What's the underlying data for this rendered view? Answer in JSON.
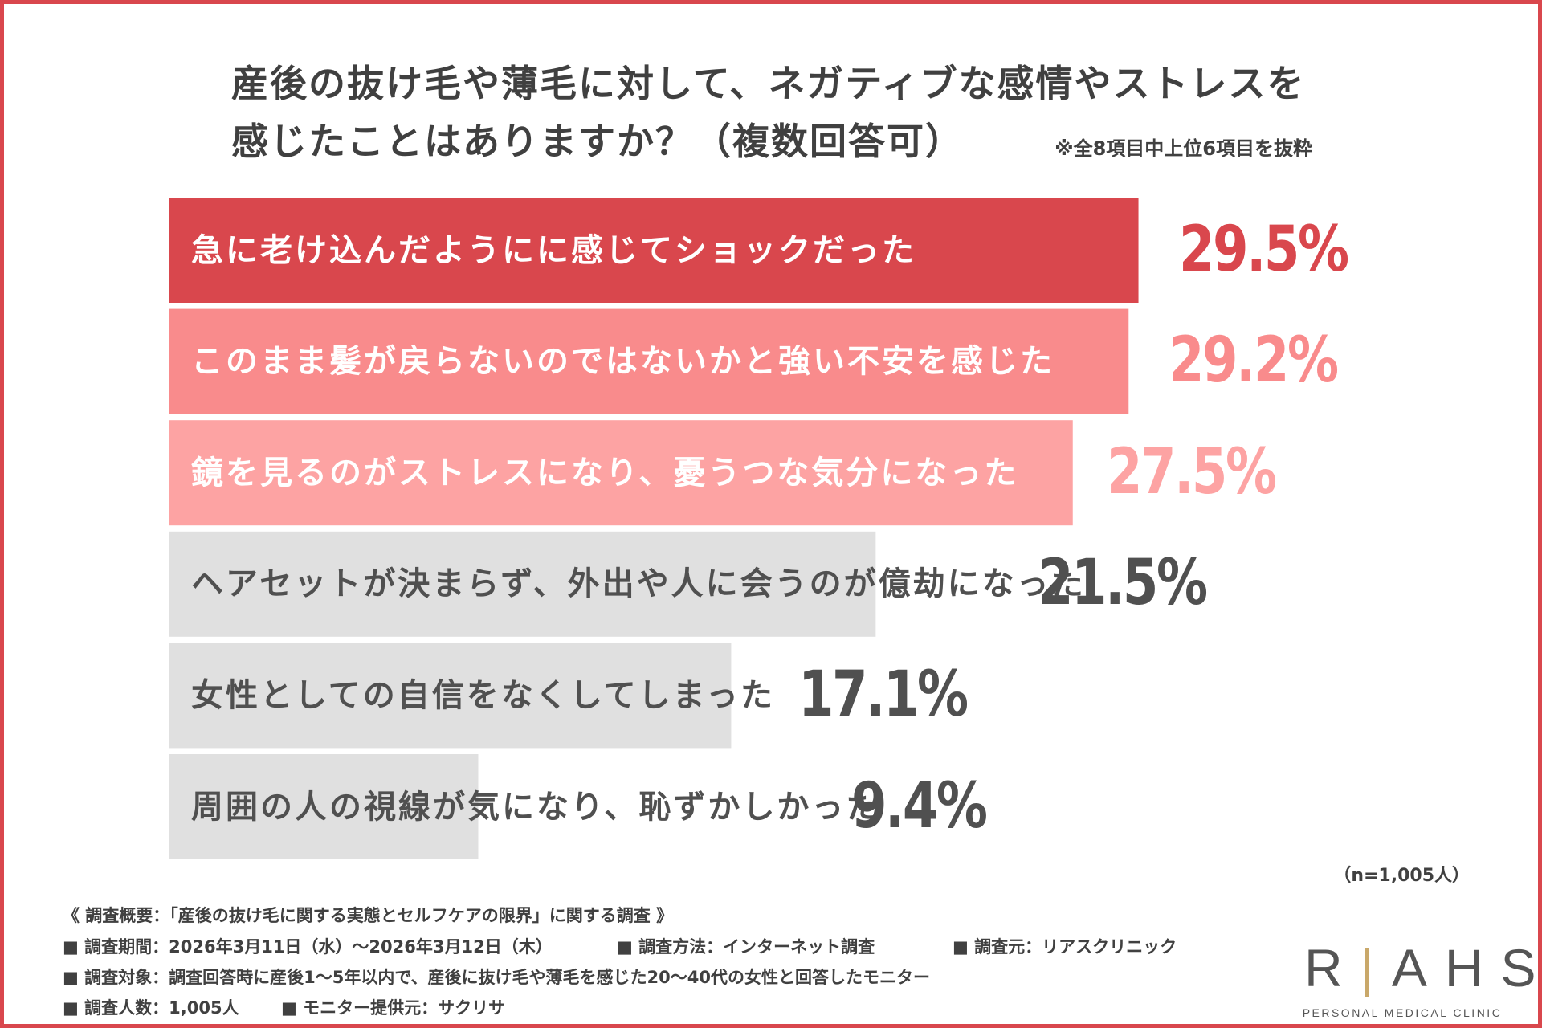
{
  "title_line1": "産後の抜け毛や薄毛に対して、ネガティブな感情やストレスを",
  "title_line2": "感じたことはありますか？（複数回答可）",
  "note": "※全8項目中上位6項目を抜粋",
  "sample_size": "（n=1,005人）",
  "footer": {
    "line1": "《 調査概要：「産後の抜け毛に関する実態とセルフケアの限界」に関する調査 》",
    "period": "■ 調査期間：2026年3月11日（水）〜2026年3月12日（木）",
    "method": "■ 調査方法：インターネット調査",
    "source": "■ 調査元：リアスクリニック",
    "target": "■ 調査対象：調査回答時に産後1〜5年以内で、産後に抜け毛や薄毛を感じた20〜40代の女性と回答したモニター",
    "count": "■ 調査人数：1,005人",
    "provider": "■ モニター提供元：サクリサ"
  },
  "logo": {
    "mark": "RIAHS",
    "sub": "PERSONAL MEDICAL CLINIC"
  },
  "colors": {
    "border": "#d9474d",
    "top1": "#d9474d",
    "top2": "#f98b8c",
    "top3": "#fda3a3",
    "rest": "#e0e0e0",
    "value_rest": "#505050"
  },
  "chart_data": {
    "type": "bar",
    "orientation": "horizontal",
    "categories": [
      "急に老け込んだようにに感じてショックだった",
      "このまま髪が戻らないのではないかと強い不安を感じた",
      "鏡を見るのがストレスになり、憂うつな気分になった",
      "ヘアセットが決まらず、外出や人に会うのが億劫になった",
      "女性としての自信をなくしてしまった",
      "周囲の人の視線が気になり、恥ずかしかった"
    ],
    "values": [
      29.5,
      29.2,
      27.5,
      21.5,
      17.1,
      9.4
    ],
    "value_labels": [
      "29.5%",
      "29.2%",
      "27.5%",
      "21.5%",
      "17.1%",
      "9.4%"
    ],
    "unit": "%",
    "xlim": [
      0,
      30
    ],
    "grid": false,
    "legend": "none"
  }
}
